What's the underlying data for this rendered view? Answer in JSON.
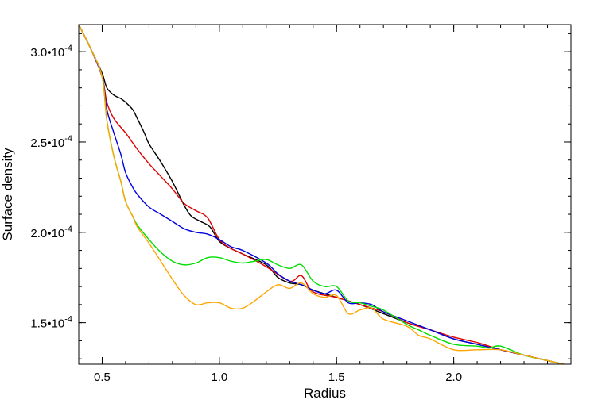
{
  "chart_data": {
    "type": "line",
    "title": "",
    "xlabel": "Radius",
    "ylabel": "Surface density",
    "xlim": [
      0.4,
      2.5
    ],
    "ylim": [
      0.000127,
      0.000315
    ],
    "grid": false,
    "x_ticks": [
      {
        "value": 0.5,
        "label": "0.5"
      },
      {
        "value": 1.0,
        "label": "1.0"
      },
      {
        "value": 1.5,
        "label": "1.5"
      },
      {
        "value": 2.0,
        "label": "2.0"
      }
    ],
    "y_ticks": [
      {
        "value": 0.00015,
        "mantissa": "1.5",
        "base": "•10",
        "exponent": "-4"
      },
      {
        "value": 0.0002,
        "mantissa": "2.0",
        "base": "•10",
        "exponent": "-4"
      },
      {
        "value": 0.00025,
        "mantissa": "2.5",
        "base": "•10",
        "exponent": "-4"
      },
      {
        "value": 0.0003,
        "mantissa": "3.0",
        "base": "•10",
        "exponent": "-4"
      }
    ],
    "series": [
      {
        "color": "#000000",
        "points": [
          [
            0.4,
            0.000315
          ],
          [
            0.45,
            0.000302
          ],
          [
            0.5,
            0.000288
          ],
          [
            0.52,
            0.00028
          ],
          [
            0.55,
            0.000276
          ],
          [
            0.58,
            0.000274
          ],
          [
            0.6,
            0.000272
          ],
          [
            0.63,
            0.000268
          ],
          [
            0.65,
            0.000263
          ],
          [
            0.68,
            0.000255
          ],
          [
            0.7,
            0.000249
          ],
          [
            0.75,
            0.000239
          ],
          [
            0.8,
            0.000228
          ],
          [
            0.85,
            0.000215
          ],
          [
            0.88,
            0.000209
          ],
          [
            0.92,
            0.000206
          ],
          [
            0.96,
            0.000203
          ],
          [
            1.0,
            0.000195
          ],
          [
            1.05,
            0.000191
          ],
          [
            1.1,
            0.000188
          ],
          [
            1.2,
            0.000182
          ],
          [
            1.25,
            0.000175
          ],
          [
            1.3,
            0.000172
          ],
          [
            1.35,
            0.000171
          ],
          [
            1.4,
            0.000168
          ],
          [
            1.5,
            0.000164
          ],
          [
            1.6,
            0.00016
          ],
          [
            1.7,
            0.000155
          ],
          [
            1.8,
            0.00015
          ],
          [
            1.9,
            0.000146
          ],
          [
            2.0,
            0.000141
          ],
          [
            2.1,
            0.000138
          ],
          [
            2.2,
            0.000135
          ],
          [
            2.3,
            0.000132
          ],
          [
            2.4,
            0.000129
          ],
          [
            2.5,
            0.000126
          ]
        ]
      },
      {
        "color": "#e00000",
        "points": [
          [
            0.4,
            0.000315
          ],
          [
            0.45,
            0.000302
          ],
          [
            0.5,
            0.000286
          ],
          [
            0.52,
            0.000272
          ],
          [
            0.55,
            0.000263
          ],
          [
            0.6,
            0.000255
          ],
          [
            0.65,
            0.000246
          ],
          [
            0.7,
            0.000238
          ],
          [
            0.75,
            0.000231
          ],
          [
            0.8,
            0.000224
          ],
          [
            0.85,
            0.000216
          ],
          [
            0.9,
            0.000212
          ],
          [
            0.95,
            0.000208
          ],
          [
            1.0,
            0.000196
          ],
          [
            1.05,
            0.000191
          ],
          [
            1.1,
            0.000188
          ],
          [
            1.2,
            0.000181
          ],
          [
            1.3,
            0.000173
          ],
          [
            1.35,
            0.000176
          ],
          [
            1.4,
            0.000167
          ],
          [
            1.5,
            0.000164
          ],
          [
            1.6,
            0.00016
          ],
          [
            1.7,
            0.000156
          ],
          [
            1.8,
            0.00015
          ],
          [
            1.9,
            0.000146
          ],
          [
            2.0,
            0.000142
          ],
          [
            2.1,
            0.000139
          ],
          [
            2.2,
            0.000135
          ],
          [
            2.3,
            0.000132
          ],
          [
            2.4,
            0.000129
          ],
          [
            2.5,
            0.000126
          ]
        ]
      },
      {
        "color": "#0000e0",
        "points": [
          [
            0.4,
            0.000315
          ],
          [
            0.45,
            0.000302
          ],
          [
            0.5,
            0.000286
          ],
          [
            0.52,
            0.000268
          ],
          [
            0.55,
            0.000255
          ],
          [
            0.58,
            0.000243
          ],
          [
            0.6,
            0.000233
          ],
          [
            0.63,
            0.000225
          ],
          [
            0.65,
            0.000221
          ],
          [
            0.7,
            0.000214
          ],
          [
            0.75,
            0.00021
          ],
          [
            0.8,
            0.000206
          ],
          [
            0.85,
            0.000202
          ],
          [
            0.9,
            0.0002
          ],
          [
            0.95,
            0.000199
          ],
          [
            1.0,
            0.000196
          ],
          [
            1.05,
            0.000192
          ],
          [
            1.1,
            0.00019
          ],
          [
            1.2,
            0.000183
          ],
          [
            1.25,
            0.000177
          ],
          [
            1.3,
            0.000173
          ],
          [
            1.35,
            0.000171
          ],
          [
            1.4,
            0.000168
          ],
          [
            1.45,
            0.000166
          ],
          [
            1.5,
            0.000168
          ],
          [
            1.55,
            0.000161
          ],
          [
            1.6,
            0.000161
          ],
          [
            1.65,
            0.00016
          ],
          [
            1.7,
            0.000156
          ],
          [
            1.8,
            0.000151
          ],
          [
            1.9,
            0.000146
          ],
          [
            2.0,
            0.000141
          ],
          [
            2.1,
            0.000138
          ],
          [
            2.2,
            0.000135
          ],
          [
            2.3,
            0.000132
          ],
          [
            2.4,
            0.000129
          ],
          [
            2.5,
            0.000126
          ]
        ]
      },
      {
        "color": "#00dd00",
        "points": [
          [
            0.4,
            0.000315
          ],
          [
            0.45,
            0.000302
          ],
          [
            0.5,
            0.000286
          ],
          [
            0.52,
            0.000262
          ],
          [
            0.55,
            0.000242
          ],
          [
            0.58,
            0.000228
          ],
          [
            0.6,
            0.000217
          ],
          [
            0.63,
            0.000209
          ],
          [
            0.65,
            0.000204
          ],
          [
            0.7,
            0.000196
          ],
          [
            0.75,
            0.000189
          ],
          [
            0.8,
            0.000184
          ],
          [
            0.85,
            0.000182
          ],
          [
            0.9,
            0.000183
          ],
          [
            0.95,
            0.000186
          ],
          [
            1.0,
            0.000186
          ],
          [
            1.05,
            0.000184
          ],
          [
            1.1,
            0.000183
          ],
          [
            1.15,
            0.000184
          ],
          [
            1.2,
            0.000185
          ],
          [
            1.25,
            0.000182
          ],
          [
            1.3,
            0.00018
          ],
          [
            1.35,
            0.000182
          ],
          [
            1.4,
            0.000173
          ],
          [
            1.45,
            0.00017
          ],
          [
            1.5,
            0.00017
          ],
          [
            1.55,
            0.000162
          ],
          [
            1.6,
            0.000161
          ],
          [
            1.65,
            0.000159
          ],
          [
            1.7,
            0.000157
          ],
          [
            1.8,
            0.000149
          ],
          [
            1.85,
            0.000146
          ],
          [
            1.9,
            0.000143
          ],
          [
            2.0,
            0.000138
          ],
          [
            2.1,
            0.000137
          ],
          [
            2.15,
            0.000136
          ],
          [
            2.2,
            0.000137
          ],
          [
            2.3,
            0.000132
          ],
          [
            2.4,
            0.000129
          ],
          [
            2.5,
            0.000126
          ]
        ]
      },
      {
        "color": "#ffa500",
        "points": [
          [
            0.4,
            0.000315
          ],
          [
            0.45,
            0.000302
          ],
          [
            0.5,
            0.000286
          ],
          [
            0.52,
            0.000262
          ],
          [
            0.55,
            0.000242
          ],
          [
            0.58,
            0.000228
          ],
          [
            0.6,
            0.000217
          ],
          [
            0.63,
            0.000209
          ],
          [
            0.65,
            0.000203
          ],
          [
            0.7,
            0.000194
          ],
          [
            0.75,
            0.000184
          ],
          [
            0.8,
            0.000174
          ],
          [
            0.85,
            0.000165
          ],
          [
            0.9,
            0.00016
          ],
          [
            0.95,
            0.000161
          ],
          [
            1.0,
            0.000161
          ],
          [
            1.05,
            0.000158
          ],
          [
            1.1,
            0.000158
          ],
          [
            1.15,
            0.000162
          ],
          [
            1.2,
            0.000167
          ],
          [
            1.25,
            0.000171
          ],
          [
            1.3,
            0.000169
          ],
          [
            1.35,
            0.000172
          ],
          [
            1.4,
            0.000166
          ],
          [
            1.45,
            0.000164
          ],
          [
            1.5,
            0.000165
          ],
          [
            1.55,
            0.000155
          ],
          [
            1.6,
            0.000157
          ],
          [
            1.65,
            0.000158
          ],
          [
            1.7,
            0.000152
          ],
          [
            1.8,
            0.000148
          ],
          [
            1.85,
            0.000143
          ],
          [
            1.9,
            0.000141
          ],
          [
            2.0,
            0.000135
          ],
          [
            2.1,
            0.000135
          ],
          [
            2.2,
            0.000135
          ],
          [
            2.3,
            0.000132
          ],
          [
            2.4,
            0.000129
          ],
          [
            2.5,
            0.000126
          ]
        ]
      }
    ]
  }
}
